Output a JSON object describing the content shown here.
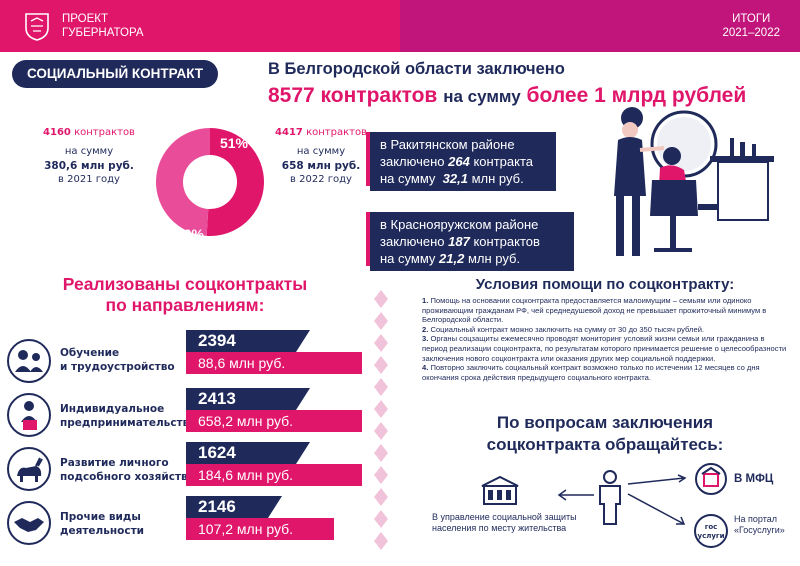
{
  "header": {
    "project_line1": "ПРОЕКТ",
    "project_line2": "ГУБЕРНАТОРА",
    "results_line1": "ИТОГИ",
    "results_line2": "2021–2022"
  },
  "badge": "СОЦИАЛЬНЫЙ КОНТРАКТ",
  "headline": {
    "line1": "В Белгородской области заключено",
    "count": "8577 контрактов",
    "middle": "на сумму",
    "amount": "более 1 млрд рублей"
  },
  "donut": {
    "share_2021": 49,
    "share_2022": 51,
    "label_2021": "49%",
    "label_2022": "51%"
  },
  "year2021": {
    "count": "4160",
    "count_suffix": "контрактов",
    "sum_label": "на сумму",
    "amount": "380,6 млн руб.",
    "year_text": "в 2021 году"
  },
  "year2022": {
    "count": "4417",
    "count_suffix": "контрактов",
    "sum_label": "на сумму",
    "amount": "658 млн руб.",
    "year_text": "в 2022 году"
  },
  "districts": [
    {
      "line1": "в Ракитянском районе",
      "line2_prefix": "заключено",
      "count": "264",
      "line2_suffix": "контракта",
      "line3_prefix": "на сумму",
      "amount": "32,1",
      "line3_suffix": "млн руб."
    },
    {
      "line1": "в Краснояружском районе",
      "line2_prefix": "заключено",
      "count": "187",
      "line2_suffix": "контрактов",
      "line3_prefix": "на сумму",
      "amount": "21,2",
      "line3_suffix": "млн руб."
    }
  ],
  "realized_title": {
    "line1": "Реализованы соцконтракты",
    "line2": "по направлениям:"
  },
  "directions": [
    {
      "label1": "Обучение",
      "label2": "и трудоустройство",
      "count": "2394",
      "sum": "88,6 млн руб.",
      "icon": "training-icon"
    },
    {
      "label1": "Индивидуальное",
      "label2": "предпринимательство",
      "count": "2413",
      "sum": "658,2 млн руб.",
      "icon": "business-icon"
    },
    {
      "label1": "Развитие личного",
      "label2": "подсобного хозяйства",
      "count": "1624",
      "sum": "184,6 млн руб.",
      "icon": "farm-icon"
    },
    {
      "label1": "Прочие виды",
      "label2": "деятельности",
      "count": "2146",
      "sum": "107,2 млн руб.",
      "icon": "handshake-icon"
    }
  ],
  "conditions": {
    "title": "Условия помощи по соцконтракту:",
    "items": [
      {
        "num": "1.",
        "text": "Помощь на основании соцконтракта предоставляется малоимущим – семьям или одиноко проживающим гражданам РФ, чей среднедушевой доход не превышает прожиточный минимум в Белгородской области."
      },
      {
        "num": "2.",
        "text": "Социальный контракт можно заключить на сумму от 30 до 350 тысяч рублей."
      },
      {
        "num": "3.",
        "text": "Органы соцзащиты ежемесячно проводят мониторинг условий жизни семьи или гражданина в период реализации соцконтракта, по результатам которого принимается решение о целесообразности заключения нового соцконтракта или оказания других мер социальной поддержки."
      },
      {
        "num": "4.",
        "text": "Повторно заключить социальный контракт возможно только по истечении 12 месяцев со дня окончания срока действия предыдущего социального контракта."
      }
    ]
  },
  "contact": {
    "title_line1": "По вопросам заключения",
    "title_line2": "соцконтракта обращайтесь:",
    "social_line1": "В управление социальной защиты",
    "social_line2": "населения по месту жительства",
    "mfc": "В МФЦ",
    "portal_line1": "На портал",
    "portal_line2": "«Госуслуги»",
    "gos_badge_1": "гос",
    "gos_badge_2": "услуги"
  },
  "colors": {
    "navy": "#1f2a5a",
    "pink": "#e0166b",
    "magenta": "#c2157b"
  }
}
